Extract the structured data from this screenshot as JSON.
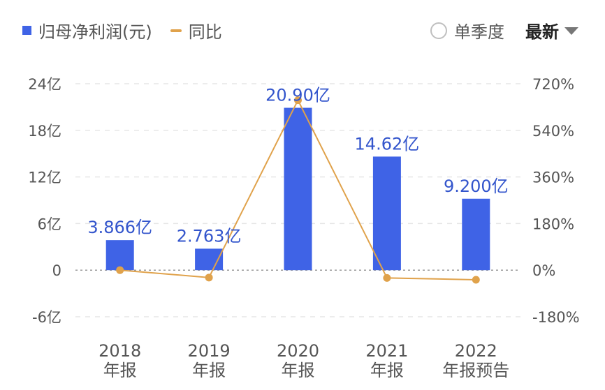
{
  "legend": {
    "bar_series": "归母净利润(元)",
    "line_series": "同比"
  },
  "controls": {
    "quarter_toggle": "单季度",
    "dropdown_value": "最新"
  },
  "colors": {
    "bar": "#3f63e6",
    "line": "#e0a24b",
    "bar_label": "#3355cc",
    "grid": "#e6e6e6"
  },
  "chart_data": {
    "type": "bar",
    "categories": [
      [
        "2018",
        "年报"
      ],
      [
        "2019",
        "年报"
      ],
      [
        "2020",
        "年报"
      ],
      [
        "2021",
        "年报"
      ],
      [
        "2022",
        "年报预告"
      ]
    ],
    "series": [
      {
        "name": "归母净利润(元)",
        "type": "bar",
        "axis": "left",
        "values": [
          3.866,
          2.763,
          20.9,
          14.62,
          9.2
        ],
        "labels": [
          "3.866亿",
          "2.763亿",
          "20.90亿",
          "14.62亿",
          "9.200亿"
        ]
      },
      {
        "name": "同比",
        "type": "line",
        "axis": "right",
        "values": [
          0,
          -28.6,
          656.4,
          -30.0,
          -37.1
        ]
      }
    ],
    "y_left": {
      "range": [
        -6,
        24
      ],
      "ticks": [
        24,
        18,
        12,
        6,
        0,
        -6
      ],
      "tick_labels": [
        "24亿",
        "18亿",
        "12亿",
        "6亿",
        "0",
        "-6亿"
      ]
    },
    "y_right": {
      "range": [
        -180,
        720
      ],
      "ticks": [
        720,
        540,
        360,
        180,
        0,
        -180
      ],
      "tick_labels": [
        "720%",
        "540%",
        "360%",
        "180%",
        "0%",
        "-180%"
      ]
    },
    "grid": true,
    "legend_position": "top-left"
  }
}
